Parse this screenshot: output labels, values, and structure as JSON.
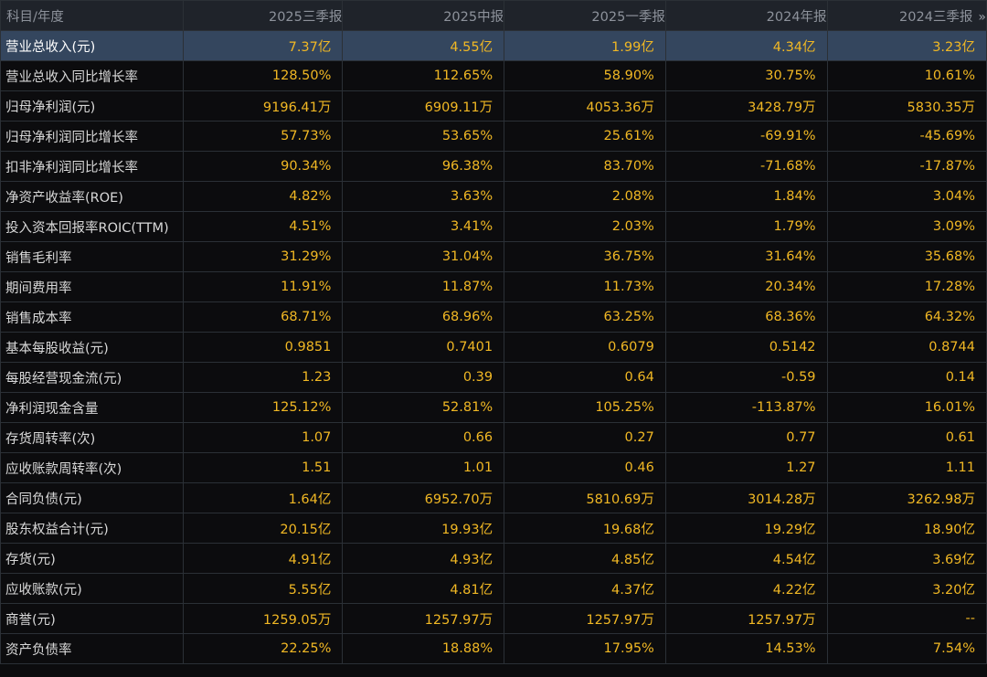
{
  "header": {
    "first_col": "科目/年度",
    "periods": [
      "2025三季报",
      "2025中报",
      "2025一季报",
      "2024年报",
      "2024三季报"
    ],
    "more_icon": "»"
  },
  "colors": {
    "value": "#f1b824",
    "label": "#d8d8d8",
    "header_bg": "#1f232a",
    "selected_row_bg": "#34465e",
    "grid": "#2b3036",
    "background": "#0c0c0e"
  },
  "rows": [
    {
      "label": "营业总收入(元)",
      "values": [
        "7.37亿",
        "4.55亿",
        "1.99亿",
        "4.34亿",
        "3.23亿"
      ],
      "selected": true
    },
    {
      "label": "营业总收入同比增长率",
      "values": [
        "128.50%",
        "112.65%",
        "58.90%",
        "30.75%",
        "10.61%"
      ]
    },
    {
      "label": "归母净利润(元)",
      "values": [
        "9196.41万",
        "6909.11万",
        "4053.36万",
        "3428.79万",
        "5830.35万"
      ]
    },
    {
      "label": "归母净利润同比增长率",
      "values": [
        "57.73%",
        "53.65%",
        "25.61%",
        "-69.91%",
        "-45.69%"
      ]
    },
    {
      "label": "扣非净利润同比增长率",
      "values": [
        "90.34%",
        "96.38%",
        "83.70%",
        "-71.68%",
        "-17.87%"
      ]
    },
    {
      "label": "净资产收益率(ROE)",
      "values": [
        "4.82%",
        "3.63%",
        "2.08%",
        "1.84%",
        "3.04%"
      ]
    },
    {
      "label": "投入资本回报率ROIC(TTM)",
      "values": [
        "4.51%",
        "3.41%",
        "2.03%",
        "1.79%",
        "3.09%"
      ]
    },
    {
      "label": "销售毛利率",
      "values": [
        "31.29%",
        "31.04%",
        "36.75%",
        "31.64%",
        "35.68%"
      ]
    },
    {
      "label": "期间费用率",
      "values": [
        "11.91%",
        "11.87%",
        "11.73%",
        "20.34%",
        "17.28%"
      ]
    },
    {
      "label": "销售成本率",
      "values": [
        "68.71%",
        "68.96%",
        "63.25%",
        "68.36%",
        "64.32%"
      ]
    },
    {
      "label": "基本每股收益(元)",
      "values": [
        "0.9851",
        "0.7401",
        "0.6079",
        "0.5142",
        "0.8744"
      ]
    },
    {
      "label": "每股经营现金流(元)",
      "values": [
        "1.23",
        "0.39",
        "0.64",
        "-0.59",
        "0.14"
      ]
    },
    {
      "label": "净利润现金含量",
      "values": [
        "125.12%",
        "52.81%",
        "105.25%",
        "-113.87%",
        "16.01%"
      ]
    },
    {
      "label": "存货周转率(次)",
      "values": [
        "1.07",
        "0.66",
        "0.27",
        "0.77",
        "0.61"
      ]
    },
    {
      "label": "应收账款周转率(次)",
      "values": [
        "1.51",
        "1.01",
        "0.46",
        "1.27",
        "1.11"
      ]
    },
    {
      "label": "合同负债(元)",
      "values": [
        "1.64亿",
        "6952.70万",
        "5810.69万",
        "3014.28万",
        "3262.98万"
      ]
    },
    {
      "label": "股东权益合计(元)",
      "values": [
        "20.15亿",
        "19.93亿",
        "19.68亿",
        "19.29亿",
        "18.90亿"
      ]
    },
    {
      "label": "存货(元)",
      "values": [
        "4.91亿",
        "4.93亿",
        "4.85亿",
        "4.54亿",
        "3.69亿"
      ]
    },
    {
      "label": "应收账款(元)",
      "values": [
        "5.55亿",
        "4.81亿",
        "4.37亿",
        "4.22亿",
        "3.20亿"
      ]
    },
    {
      "label": "商誉(元)",
      "values": [
        "1259.05万",
        "1257.97万",
        "1257.97万",
        "1257.97万",
        "--"
      ]
    },
    {
      "label": "资产负债率",
      "values": [
        "22.25%",
        "18.88%",
        "17.95%",
        "14.53%",
        "7.54%"
      ]
    }
  ]
}
